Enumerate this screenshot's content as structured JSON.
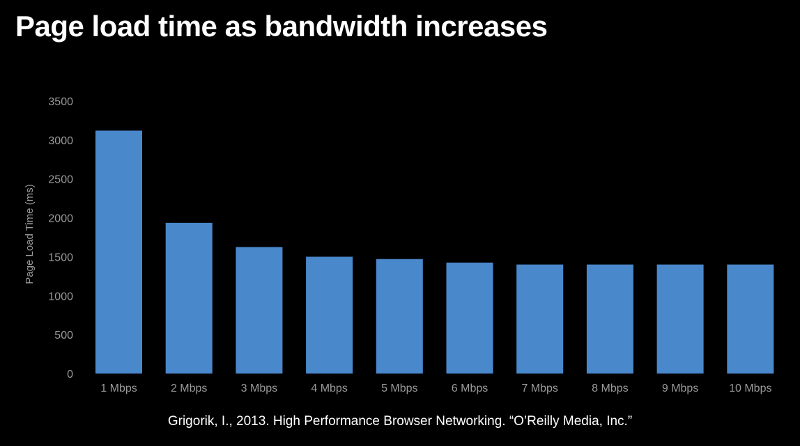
{
  "chart_data": {
    "type": "bar",
    "title": "Page load time as bandwidth increases",
    "xlabel": "",
    "ylabel": "Page Load Time (ms)",
    "categories": [
      "1 Mbps",
      "2 Mbps",
      "3 Mbps",
      "4 Mbps",
      "5 Mbps",
      "6 Mbps",
      "7 Mbps",
      "8 Mbps",
      "9 Mbps",
      "10 Mbps"
    ],
    "values": [
      3120,
      1935,
      1625,
      1500,
      1470,
      1425,
      1400,
      1400,
      1400,
      1400
    ],
    "ylim": [
      0,
      3500
    ],
    "yticks": [
      "0",
      "500",
      "1000",
      "1500",
      "2000",
      "2500",
      "3000",
      "3500"
    ],
    "grid": false,
    "bar_color": "#4a88cc",
    "background": "#000000"
  },
  "source": "Grigorik, I., 2013. High Performance Browser Networking. “O’Reilly Media, Inc.”"
}
